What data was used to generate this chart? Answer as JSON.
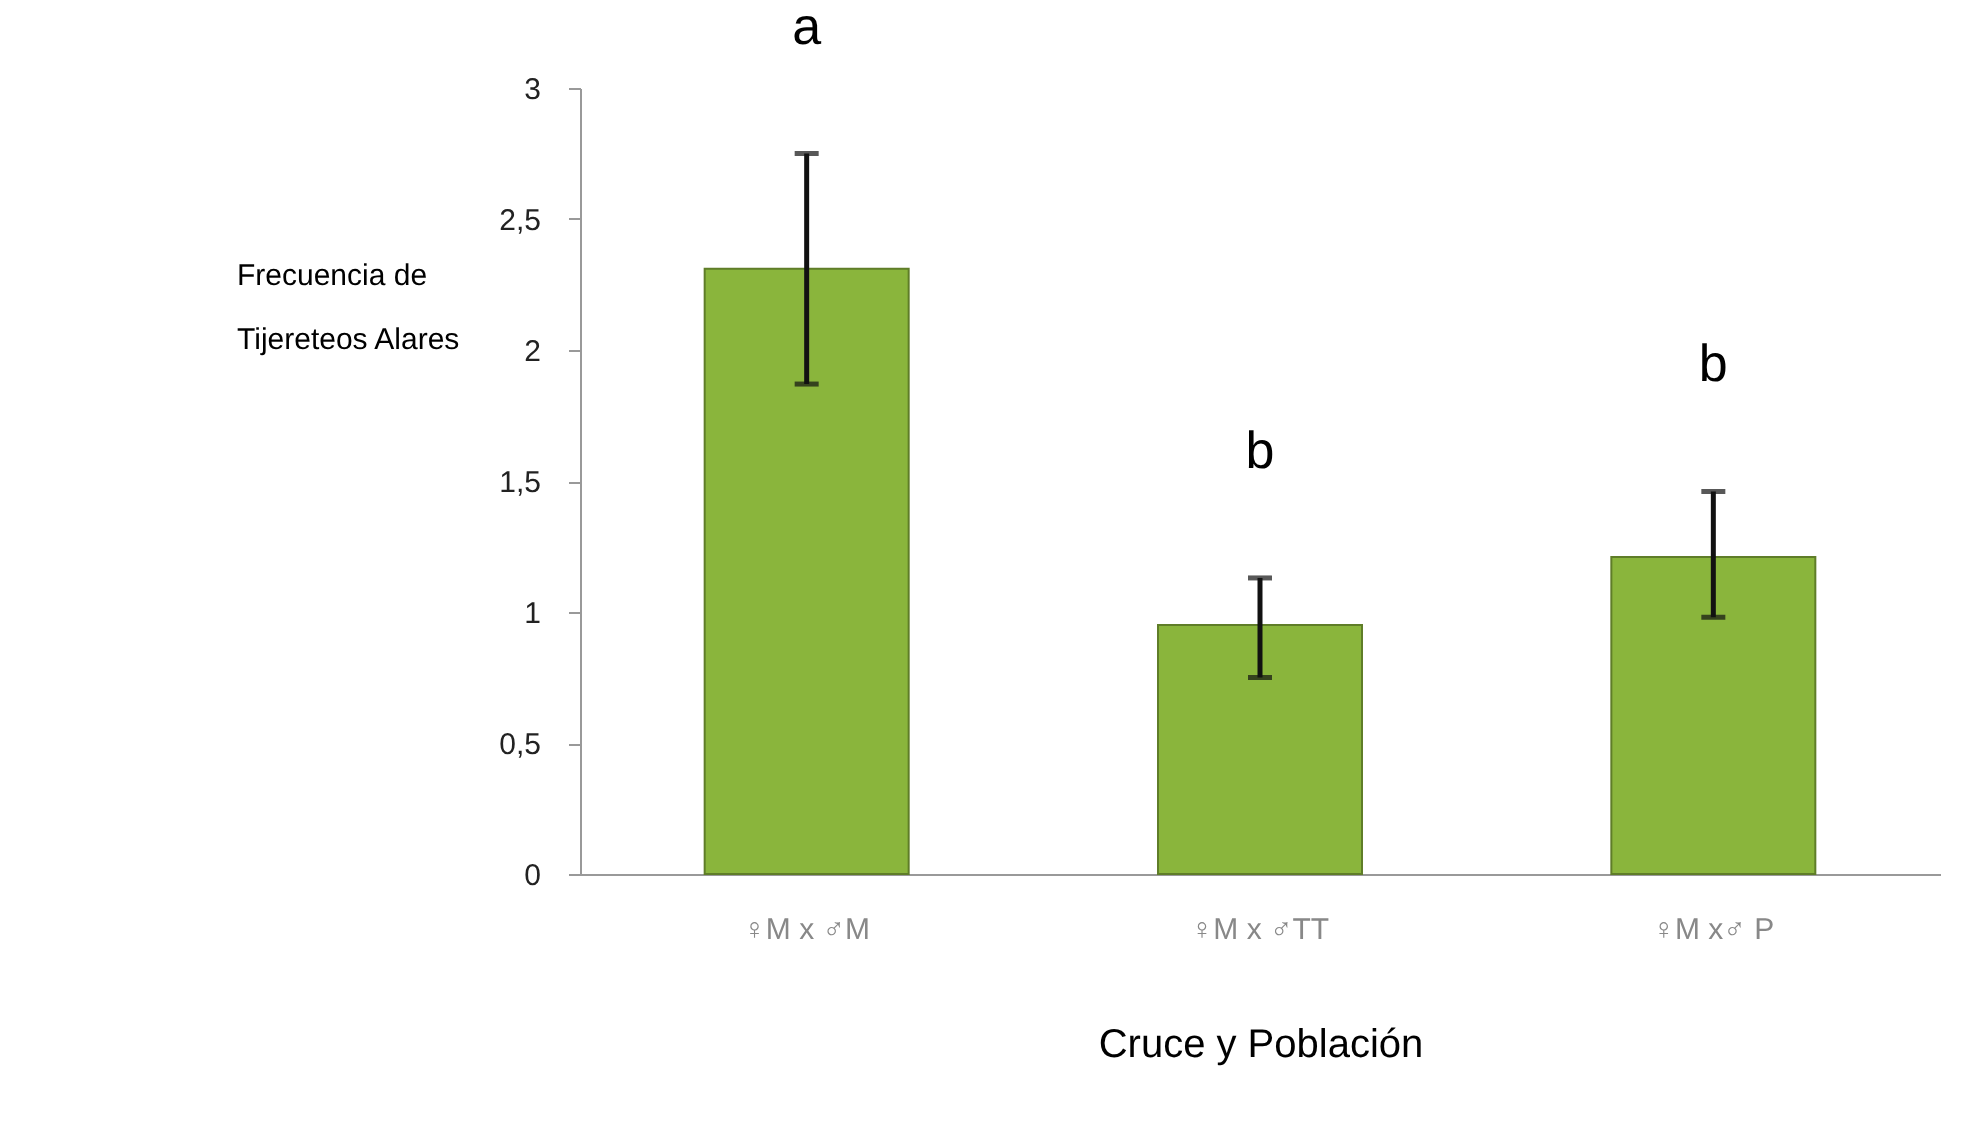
{
  "chart_data": {
    "type": "bar",
    "categories": [
      "♀M x ♂M",
      "♀M x ♂TT",
      "♀M x♂ P"
    ],
    "values": [
      2.31,
      0.95,
      1.21
    ],
    "errors": [
      [
        1.87,
        2.75
      ],
      [
        0.75,
        1.13
      ],
      [
        0.98,
        1.46
      ]
    ],
    "color": "#8ab53c",
    "xlabel": "Cruce y Población",
    "ylabel": "Frecuencia de\nTijereteos Alares",
    "ylim": [
      0,
      3
    ],
    "yticks": [
      0,
      {
        "value": 0.5,
        "label": "0,5"
      },
      1,
      {
        "value": 1.5,
        "label": "1,5"
      },
      2,
      {
        "value": 2.5,
        "label": "2,5"
      },
      3
    ],
    "annotations": [
      "a",
      "b",
      "b"
    ],
    "grid": false
  }
}
